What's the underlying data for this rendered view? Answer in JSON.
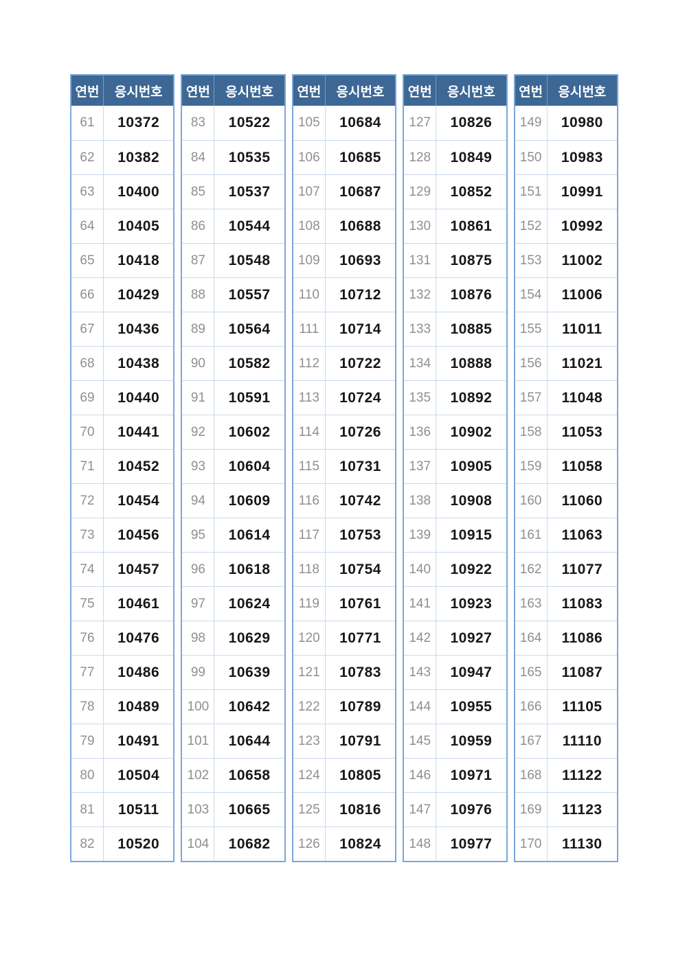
{
  "table": {
    "headers": {
      "no": "연번",
      "id": "응시번호"
    },
    "groups": [
      {
        "rows": [
          {
            "no": "61",
            "id": "10372"
          },
          {
            "no": "62",
            "id": "10382"
          },
          {
            "no": "63",
            "id": "10400"
          },
          {
            "no": "64",
            "id": "10405"
          },
          {
            "no": "65",
            "id": "10418"
          },
          {
            "no": "66",
            "id": "10429"
          },
          {
            "no": "67",
            "id": "10436"
          },
          {
            "no": "68",
            "id": "10438"
          },
          {
            "no": "69",
            "id": "10440"
          },
          {
            "no": "70",
            "id": "10441"
          },
          {
            "no": "71",
            "id": "10452"
          },
          {
            "no": "72",
            "id": "10454"
          },
          {
            "no": "73",
            "id": "10456"
          },
          {
            "no": "74",
            "id": "10457"
          },
          {
            "no": "75",
            "id": "10461"
          },
          {
            "no": "76",
            "id": "10476"
          },
          {
            "no": "77",
            "id": "10486"
          },
          {
            "no": "78",
            "id": "10489"
          },
          {
            "no": "79",
            "id": "10491"
          },
          {
            "no": "80",
            "id": "10504"
          },
          {
            "no": "81",
            "id": "10511"
          },
          {
            "no": "82",
            "id": "10520"
          }
        ]
      },
      {
        "rows": [
          {
            "no": "83",
            "id": "10522"
          },
          {
            "no": "84",
            "id": "10535"
          },
          {
            "no": "85",
            "id": "10537"
          },
          {
            "no": "86",
            "id": "10544"
          },
          {
            "no": "87",
            "id": "10548"
          },
          {
            "no": "88",
            "id": "10557"
          },
          {
            "no": "89",
            "id": "10564"
          },
          {
            "no": "90",
            "id": "10582"
          },
          {
            "no": "91",
            "id": "10591"
          },
          {
            "no": "92",
            "id": "10602"
          },
          {
            "no": "93",
            "id": "10604"
          },
          {
            "no": "94",
            "id": "10609"
          },
          {
            "no": "95",
            "id": "10614"
          },
          {
            "no": "96",
            "id": "10618"
          },
          {
            "no": "97",
            "id": "10624"
          },
          {
            "no": "98",
            "id": "10629"
          },
          {
            "no": "99",
            "id": "10639"
          },
          {
            "no": "100",
            "id": "10642"
          },
          {
            "no": "101",
            "id": "10644"
          },
          {
            "no": "102",
            "id": "10658"
          },
          {
            "no": "103",
            "id": "10665"
          },
          {
            "no": "104",
            "id": "10682"
          }
        ]
      },
      {
        "rows": [
          {
            "no": "105",
            "id": "10684"
          },
          {
            "no": "106",
            "id": "10685"
          },
          {
            "no": "107",
            "id": "10687"
          },
          {
            "no": "108",
            "id": "10688"
          },
          {
            "no": "109",
            "id": "10693"
          },
          {
            "no": "110",
            "id": "10712"
          },
          {
            "no": "111",
            "id": "10714"
          },
          {
            "no": "112",
            "id": "10722"
          },
          {
            "no": "113",
            "id": "10724"
          },
          {
            "no": "114",
            "id": "10726"
          },
          {
            "no": "115",
            "id": "10731"
          },
          {
            "no": "116",
            "id": "10742"
          },
          {
            "no": "117",
            "id": "10753"
          },
          {
            "no": "118",
            "id": "10754"
          },
          {
            "no": "119",
            "id": "10761"
          },
          {
            "no": "120",
            "id": "10771"
          },
          {
            "no": "121",
            "id": "10783"
          },
          {
            "no": "122",
            "id": "10789"
          },
          {
            "no": "123",
            "id": "10791"
          },
          {
            "no": "124",
            "id": "10805"
          },
          {
            "no": "125",
            "id": "10816"
          },
          {
            "no": "126",
            "id": "10824"
          }
        ]
      },
      {
        "rows": [
          {
            "no": "127",
            "id": "10826"
          },
          {
            "no": "128",
            "id": "10849"
          },
          {
            "no": "129",
            "id": "10852"
          },
          {
            "no": "130",
            "id": "10861"
          },
          {
            "no": "131",
            "id": "10875"
          },
          {
            "no": "132",
            "id": "10876"
          },
          {
            "no": "133",
            "id": "10885"
          },
          {
            "no": "134",
            "id": "10888"
          },
          {
            "no": "135",
            "id": "10892"
          },
          {
            "no": "136",
            "id": "10902"
          },
          {
            "no": "137",
            "id": "10905"
          },
          {
            "no": "138",
            "id": "10908"
          },
          {
            "no": "139",
            "id": "10915"
          },
          {
            "no": "140",
            "id": "10922"
          },
          {
            "no": "141",
            "id": "10923"
          },
          {
            "no": "142",
            "id": "10927"
          },
          {
            "no": "143",
            "id": "10947"
          },
          {
            "no": "144",
            "id": "10955"
          },
          {
            "no": "145",
            "id": "10959"
          },
          {
            "no": "146",
            "id": "10971"
          },
          {
            "no": "147",
            "id": "10976"
          },
          {
            "no": "148",
            "id": "10977"
          }
        ]
      },
      {
        "rows": [
          {
            "no": "149",
            "id": "10980"
          },
          {
            "no": "150",
            "id": "10983"
          },
          {
            "no": "151",
            "id": "10991"
          },
          {
            "no": "152",
            "id": "10992"
          },
          {
            "no": "153",
            "id": "11002"
          },
          {
            "no": "154",
            "id": "11006"
          },
          {
            "no": "155",
            "id": "11011"
          },
          {
            "no": "156",
            "id": "11021"
          },
          {
            "no": "157",
            "id": "11048"
          },
          {
            "no": "158",
            "id": "11053"
          },
          {
            "no": "159",
            "id": "11058"
          },
          {
            "no": "160",
            "id": "11060"
          },
          {
            "no": "161",
            "id": "11063"
          },
          {
            "no": "162",
            "id": "11077"
          },
          {
            "no": "163",
            "id": "11083"
          },
          {
            "no": "164",
            "id": "11086"
          },
          {
            "no": "165",
            "id": "11087"
          },
          {
            "no": "166",
            "id": "11105"
          },
          {
            "no": "167",
            "id": "11110"
          },
          {
            "no": "168",
            "id": "11122"
          },
          {
            "no": "169",
            "id": "11123"
          },
          {
            "no": "170",
            "id": "11130"
          }
        ]
      }
    ]
  },
  "colors": {
    "header_bg": "#3d6795",
    "header_text": "#ffffff",
    "outer_border": "#7aa7d8",
    "grid_line": "#c9d9ec",
    "serial_text": "#8f8f8f",
    "exam_number_text": "#171717"
  }
}
